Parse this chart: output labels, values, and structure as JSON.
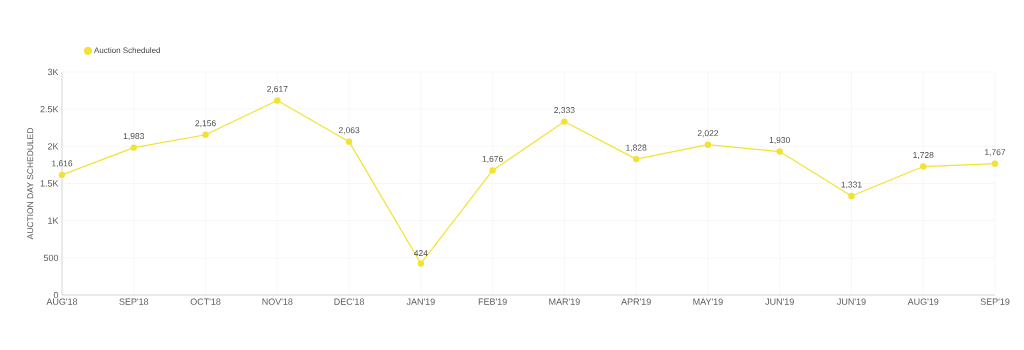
{
  "chart_data": {
    "type": "line",
    "ylabel": "AUCTION DAY SCHEDULED",
    "categories": [
      "AUG'18",
      "SEP'18",
      "OCT'18",
      "NOV'18",
      "DEC'18",
      "JAN'19",
      "FEB'19",
      "MAR'19",
      "APR'19",
      "MAY'19",
      "JUN'19",
      "JUN'19",
      "AUG'19",
      "SEP'19"
    ],
    "series": [
      {
        "name": "Auction Scheduled",
        "color": "#f2e232",
        "values": [
          1616,
          1983,
          2156,
          2617,
          2063,
          424,
          1676,
          2333,
          1828,
          2022,
          1930,
          1331,
          1728,
          1767
        ],
        "value_labels": [
          "1,616",
          "1,983",
          "2,156",
          "2,617",
          "2,063",
          "424",
          "1,676",
          "2,333",
          "1,828",
          "2,022",
          "1,930",
          "1,331",
          "1,728",
          "1,767"
        ]
      }
    ],
    "ylim": [
      0,
      3000
    ],
    "yticks": [
      0,
      500,
      {
        "value": 1000,
        "label": "1K"
      },
      {
        "value": 1500,
        "label": "1.5K"
      },
      {
        "value": 2000,
        "label": "2K"
      },
      {
        "value": 2500,
        "label": "2.5K"
      },
      {
        "value": 3000,
        "label": "3K"
      }
    ],
    "grid": true,
    "legend": "top left",
    "marker": "circle",
    "line_style": "solid"
  }
}
